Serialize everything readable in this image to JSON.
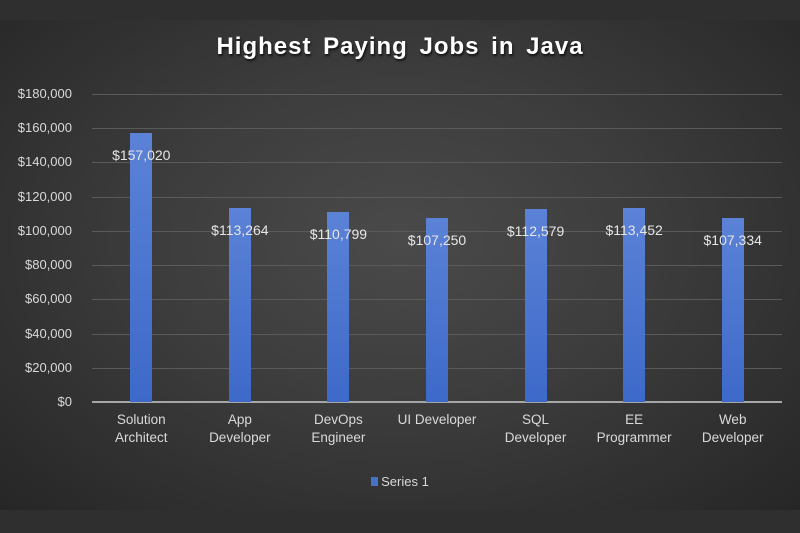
{
  "chart_data": {
    "type": "bar",
    "title": "Highest Paying Jobs in Java",
    "categories": [
      "Solution Architect",
      "App Developer",
      "DevOps Engineer",
      "UI Developer",
      "SQL Developer",
      "EE Programmer",
      "Web Developer"
    ],
    "category_lines": [
      [
        "Solution",
        "Architect"
      ],
      [
        "App",
        "Developer"
      ],
      [
        "DevOps",
        "Engineer"
      ],
      [
        "UI Developer"
      ],
      [
        "SQL",
        "Developer"
      ],
      [
        "EE",
        "Programmer"
      ],
      [
        "Web",
        "Developer"
      ]
    ],
    "series": [
      {
        "name": "Series 1",
        "color": "#4472c4",
        "values": [
          157020,
          113264,
          110799,
          107250,
          112579,
          113452,
          107334
        ]
      }
    ],
    "data_labels": [
      "$157,020",
      "$113,264",
      "$110,799",
      "$107,250",
      "$112,579",
      "$113,452",
      "$107,334"
    ],
    "xlabel": "",
    "ylabel": "",
    "ylim": [
      0,
      180000
    ],
    "yticks": [
      "$0",
      "$20,000",
      "$40,000",
      "$60,000",
      "$80,000",
      "$100,000",
      "$120,000",
      "$140,000",
      "$160,000",
      "$180,000"
    ],
    "grid": true,
    "legend_position": "bottom"
  },
  "legend": {
    "label": "Series 1"
  }
}
